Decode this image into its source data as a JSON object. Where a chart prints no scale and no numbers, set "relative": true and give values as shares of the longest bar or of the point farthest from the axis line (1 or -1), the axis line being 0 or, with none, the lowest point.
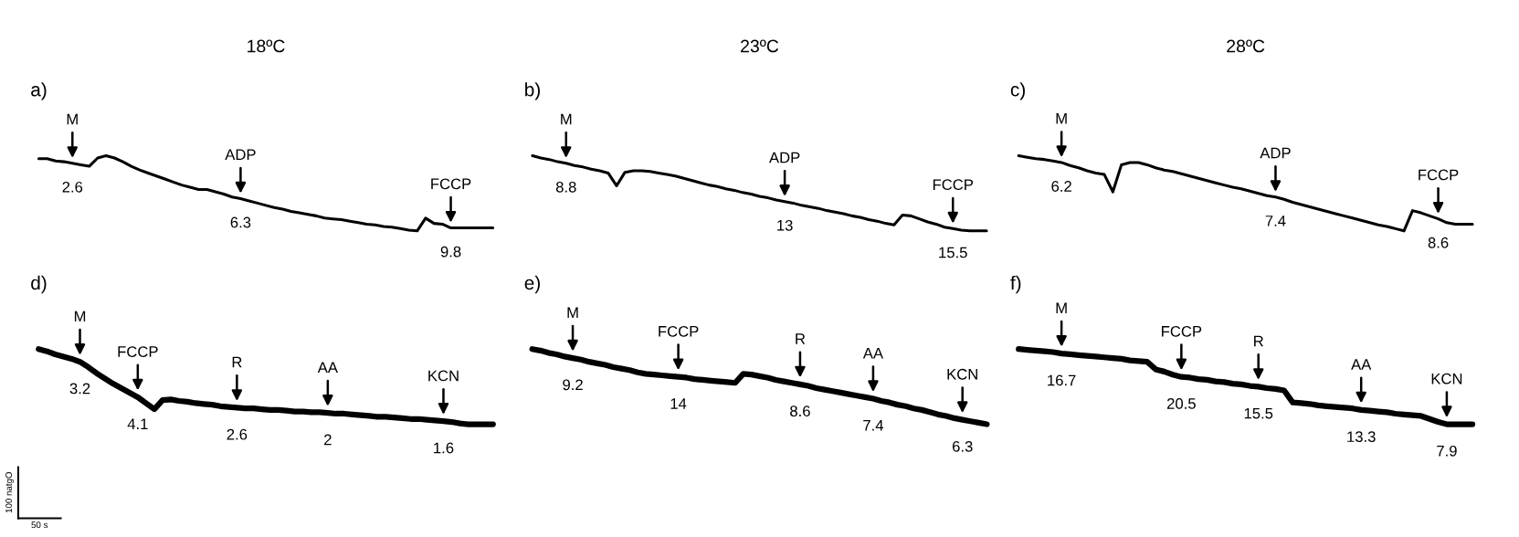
{
  "chart_data": [
    {
      "type": "line",
      "relative": true,
      "title": "18ºC",
      "subtitle": "a)",
      "tick_labels": false,
      "categories": [
        null,
        null,
        null,
        null,
        null,
        null,
        null,
        null,
        null,
        null,
        null,
        null,
        null,
        null,
        null,
        null,
        null,
        null,
        null,
        null,
        null,
        null,
        null,
        null,
        null,
        null,
        null,
        null,
        null,
        null,
        null,
        null,
        null,
        null,
        null,
        null,
        null,
        null,
        null,
        null,
        null,
        null,
        null,
        null,
        null,
        null,
        null,
        null,
        null,
        null,
        null,
        null,
        null,
        null,
        null
      ],
      "series": [
        {
          "color": "#000000",
          "values": [
            0.96,
            0.96,
            0.93,
            0.92,
            0.9,
            0.88,
            0.86,
            0.97,
            1,
            0.97,
            0.92,
            0.86,
            0.81,
            0.77,
            0.73,
            0.69,
            0.65,
            0.61,
            0.58,
            0.55,
            0.55,
            0.52,
            0.49,
            0.45,
            0.43,
            0.4,
            0.37,
            0.34,
            0.31,
            0.29,
            0.26,
            0.24,
            0.22,
            0.2,
            0.17,
            0.16,
            0.15,
            0.13,
            0.11,
            0.09,
            0.08,
            0.06,
            0.05,
            0.03,
            0.01,
            0,
            0.17,
            0.1,
            0.09,
            0.04,
            0.04,
            0.04,
            0.04,
            0.04,
            0.04
          ]
        }
      ],
      "annotations": [
        {
          "text": "M",
          "y": 0.9
        },
        {
          "text": "2.6",
          "y": 0.9
        },
        {
          "text": "ADP",
          "y": 0.43
        },
        {
          "text": "6.3",
          "y": 0.43
        },
        {
          "text": "FCCP",
          "y": 0.04
        },
        {
          "text": "9.8",
          "y": 0.04
        }
      ]
    },
    {
      "type": "line",
      "relative": true,
      "title": "23ºC",
      "subtitle": "b)",
      "tick_labels": false,
      "categories": [
        null,
        null,
        null,
        null,
        null,
        null,
        null,
        null,
        null,
        null,
        null,
        null,
        null,
        null,
        null,
        null,
        null,
        null,
        null,
        null,
        null,
        null,
        null,
        null,
        null,
        null,
        null,
        null,
        null,
        null,
        null,
        null,
        null,
        null,
        null,
        null,
        null,
        null,
        null,
        null,
        null,
        null,
        null,
        null,
        null,
        null,
        null,
        null,
        null,
        null,
        null,
        null,
        null,
        null,
        null
      ],
      "series": [
        {
          "color": "#000000",
          "values": [
            1,
            0.97,
            0.95,
            0.92,
            0.9,
            0.87,
            0.85,
            0.82,
            0.8,
            0.77,
            0.6,
            0.78,
            0.8,
            0.8,
            0.79,
            0.77,
            0.75,
            0.73,
            0.7,
            0.67,
            0.64,
            0.61,
            0.59,
            0.56,
            0.54,
            0.51,
            0.49,
            0.46,
            0.44,
            0.41,
            0.39,
            0.37,
            0.34,
            0.32,
            0.3,
            0.27,
            0.25,
            0.23,
            0.2,
            0.18,
            0.15,
            0.13,
            0.1,
            0.08,
            0.21,
            0.2,
            0.16,
            0.12,
            0.09,
            0.05,
            0.03,
            0.01,
            0,
            0,
            0
          ]
        }
      ],
      "annotations": [
        {
          "text": "M",
          "y": 0.9
        },
        {
          "text": "8.8",
          "y": 0.9
        },
        {
          "text": "ADP",
          "y": 0.39
        },
        {
          "text": "13",
          "y": 0.39
        },
        {
          "text": "FCCP",
          "y": 0.03
        },
        {
          "text": "15.5",
          "y": 0.03
        }
      ]
    },
    {
      "type": "line",
      "relative": true,
      "title": "28ºC",
      "subtitle": "c)",
      "tick_labels": false,
      "categories": [
        null,
        null,
        null,
        null,
        null,
        null,
        null,
        null,
        null,
        null,
        null,
        null,
        null,
        null,
        null,
        null,
        null,
        null,
        null,
        null,
        null,
        null,
        null,
        null,
        null,
        null,
        null,
        null,
        null,
        null,
        null,
        null,
        null,
        null,
        null,
        null,
        null,
        null,
        null,
        null,
        null,
        null,
        null,
        null,
        null,
        null,
        null,
        null,
        null,
        null,
        null,
        null,
        null,
        null
      ],
      "series": [
        {
          "color": "#000000",
          "values": [
            1,
            0.98,
            0.96,
            0.95,
            0.93,
            0.91,
            0.87,
            0.84,
            0.8,
            0.77,
            0.75,
            0.52,
            0.88,
            0.91,
            0.91,
            0.88,
            0.84,
            0.81,
            0.79,
            0.76,
            0.73,
            0.7,
            0.67,
            0.64,
            0.61,
            0.58,
            0.56,
            0.53,
            0.5,
            0.47,
            0.45,
            0.42,
            0.38,
            0.35,
            0.32,
            0.29,
            0.26,
            0.23,
            0.2,
            0.17,
            0.14,
            0.11,
            0.08,
            0.06,
            0.03,
            0,
            0.27,
            0.24,
            0.2,
            0.16,
            0.11,
            0.09,
            0.09,
            0.09
          ]
        }
      ],
      "annotations": [
        {
          "text": "M",
          "y": 0.91
        },
        {
          "text": "6.2",
          "y": 0.91
        },
        {
          "text": "ADP",
          "y": 0.45
        },
        {
          "text": "7.4",
          "y": 0.45
        },
        {
          "text": "FCCP",
          "y": 0.16
        },
        {
          "text": "8.6",
          "y": 0.16
        }
      ]
    },
    {
      "type": "line",
      "relative": true,
      "subtitle": "d)",
      "tick_labels": false,
      "categories": [
        null,
        null,
        null,
        null,
        null,
        null,
        null,
        null,
        null,
        null,
        null,
        null,
        null,
        null,
        null,
        null,
        null,
        null,
        null,
        null,
        null,
        null,
        null,
        null,
        null,
        null,
        null,
        null,
        null,
        null,
        null,
        null,
        null,
        null,
        null,
        null,
        null,
        null,
        null,
        null,
        null,
        null,
        null,
        null,
        null,
        null,
        null,
        null,
        null,
        null,
        null,
        null,
        null,
        null,
        null,
        null
      ],
      "series": [
        {
          "color": "#000000",
          "values": [
            1,
            0.97,
            0.93,
            0.9,
            0.87,
            0.83,
            0.76,
            0.68,
            0.61,
            0.54,
            0.48,
            0.42,
            0.36,
            0.28,
            0.2,
            0.32,
            0.33,
            0.31,
            0.3,
            0.28,
            0.27,
            0.26,
            0.24,
            0.23,
            0.22,
            0.21,
            0.21,
            0.2,
            0.19,
            0.19,
            0.18,
            0.17,
            0.17,
            0.16,
            0.16,
            0.15,
            0.14,
            0.14,
            0.13,
            0.12,
            0.11,
            0.1,
            0.1,
            0.09,
            0.08,
            0.07,
            0.07,
            0.06,
            0.05,
            0.04,
            0.03,
            0.01,
            0,
            0,
            0,
            0
          ]
        }
      ],
      "annotations": [
        {
          "text": "M",
          "y": 0.83
        },
        {
          "text": "3.2",
          "y": 0.83
        },
        {
          "text": "FCCP",
          "y": 0.36
        },
        {
          "text": "4.1",
          "y": 0.36
        },
        {
          "text": "R",
          "y": 0.22
        },
        {
          "text": "2.6",
          "y": 0.22
        },
        {
          "text": "AA",
          "y": 0.15
        },
        {
          "text": "2",
          "y": 0.15
        },
        {
          "text": "KCN",
          "y": 0.04
        },
        {
          "text": "1.6",
          "y": 0.04
        },
        "100 natgO",
        "50 s"
      ]
    },
    {
      "type": "line",
      "relative": true,
      "subtitle": "e)",
      "tick_labels": false,
      "categories": [
        null,
        null,
        null,
        null,
        null,
        null,
        null,
        null,
        null,
        null,
        null,
        null,
        null,
        null,
        null,
        null,
        null,
        null,
        null,
        null,
        null,
        null,
        null,
        null,
        null,
        null,
        null,
        null,
        null,
        null,
        null,
        null,
        null,
        null,
        null,
        null,
        null,
        null,
        null,
        null,
        null,
        null,
        null,
        null,
        null,
        null,
        null,
        null,
        null,
        null,
        null,
        null,
        null,
        null,
        null,
        null,
        null
      ],
      "series": [
        {
          "color": "#000000",
          "values": [
            1,
            0.98,
            0.95,
            0.93,
            0.9,
            0.88,
            0.86,
            0.83,
            0.81,
            0.79,
            0.76,
            0.74,
            0.72,
            0.69,
            0.67,
            0.66,
            0.65,
            0.64,
            0.63,
            0.62,
            0.6,
            0.59,
            0.58,
            0.57,
            0.56,
            0.55,
            0.67,
            0.66,
            0.64,
            0.62,
            0.59,
            0.57,
            0.55,
            0.53,
            0.51,
            0.48,
            0.46,
            0.44,
            0.42,
            0.4,
            0.38,
            0.36,
            0.34,
            0.31,
            0.29,
            0.26,
            0.24,
            0.21,
            0.19,
            0.16,
            0.13,
            0.11,
            0.08,
            0.06,
            0.04,
            0.02,
            0
          ]
        }
      ],
      "annotations": [
        {
          "text": "M",
          "y": 0.88
        },
        {
          "text": "9.2",
          "y": 0.88
        },
        {
          "text": "FCCP",
          "y": 0.63
        },
        {
          "text": "14",
          "y": 0.63
        },
        {
          "text": "R",
          "y": 0.53
        },
        {
          "text": "8.6",
          "y": 0.53
        },
        {
          "text": "AA",
          "y": 0.34
        },
        {
          "text": "7.4",
          "y": 0.34
        },
        {
          "text": "KCN",
          "y": 0.06
        },
        {
          "text": "6.3",
          "y": 0.06
        }
      ]
    },
    {
      "type": "line",
      "relative": true,
      "subtitle": "f)",
      "tick_labels": false,
      "categories": [
        null,
        null,
        null,
        null,
        null,
        null,
        null,
        null,
        null,
        null,
        null,
        null,
        null,
        null,
        null,
        null,
        null,
        null,
        null,
        null,
        null,
        null,
        null,
        null,
        null,
        null,
        null,
        null,
        null,
        null,
        null,
        null,
        null,
        null,
        null,
        null,
        null,
        null,
        null,
        null,
        null,
        null,
        null,
        null,
        null,
        null,
        null,
        null,
        null,
        null,
        null,
        null,
        null,
        null
      ],
      "series": [
        {
          "color": "#000000",
          "values": [
            1,
            0.99,
            0.98,
            0.97,
            0.96,
            0.94,
            0.93,
            0.92,
            0.91,
            0.9,
            0.89,
            0.88,
            0.87,
            0.85,
            0.84,
            0.83,
            0.73,
            0.7,
            0.66,
            0.63,
            0.62,
            0.6,
            0.59,
            0.57,
            0.56,
            0.54,
            0.53,
            0.51,
            0.5,
            0.48,
            0.47,
            0.45,
            0.29,
            0.28,
            0.27,
            0.25,
            0.24,
            0.23,
            0.22,
            0.21,
            0.19,
            0.18,
            0.17,
            0.16,
            0.14,
            0.13,
            0.12,
            0.11,
            0.07,
            0.03,
            0,
            0,
            0,
            0
          ]
        }
      ],
      "annotations": [
        {
          "text": "M",
          "y": 0.94
        },
        {
          "text": "16.7",
          "y": 0.94
        },
        {
          "text": "FCCP",
          "y": 0.63
        },
        {
          "text": "20.5",
          "y": 0.63
        },
        {
          "text": "R",
          "y": 0.5
        },
        {
          "text": "15.5",
          "y": 0.5
        },
        {
          "text": "AA",
          "y": 0.19
        },
        {
          "text": "13.3",
          "y": 0.19
        },
        {
          "text": "KCN",
          "y": 0
        },
        {
          "text": "7.9",
          "y": 0
        }
      ]
    }
  ]
}
